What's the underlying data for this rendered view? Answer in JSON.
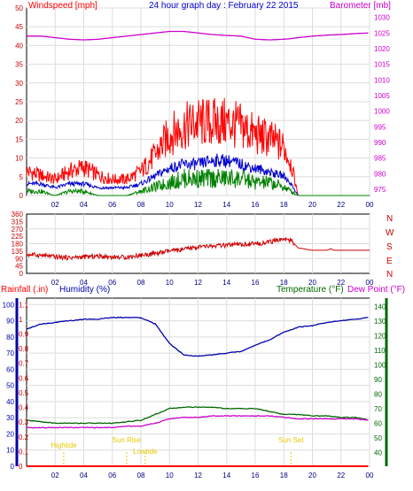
{
  "header": {
    "left": "Windspeed [mph]",
    "center": "24 hour graph day : February 22 2015",
    "right": "Barometer [mb]"
  },
  "middle": {
    "direction_labels": [
      "N",
      "W",
      "S",
      "E",
      "N"
    ]
  },
  "bottom_header": {
    "rainfall": "Rainfall (.in)",
    "humidity": "Humidity (%)",
    "temperature": "Temperature (°F)",
    "dewpoint": "Dew Point (°F)"
  },
  "colors": {
    "windspeed": "#ff0000",
    "avg": "#0000cc",
    "gust": "#008000",
    "barometer": "#cc00cc",
    "humidity": "#0000aa",
    "temperature": "#006600",
    "dewpoint": "#cc00cc",
    "rain": "#ff0000",
    "tide": "#e6c800",
    "grid": "#dddddd",
    "background": "#ffffff"
  },
  "chart_data": [
    {
      "type": "line",
      "title": "24 hour graph day : February 22 2015",
      "xlabel": "",
      "ylabel_left": "Windspeed [mph]",
      "ylabel_right": "Barometer [mb]",
      "x_ticks": [
        "02",
        "04",
        "06",
        "08",
        "10",
        "12",
        "14",
        "16",
        "18",
        "20",
        "22",
        "00"
      ],
      "y_left_ticks": [
        0,
        5,
        10,
        15,
        20,
        25,
        30,
        35,
        40,
        45,
        50
      ],
      "y_right_ticks": [
        975,
        980,
        985,
        990,
        995,
        1000,
        1005,
        1010,
        1015,
        1020,
        1025,
        1030
      ],
      "ylim_left": [
        0,
        50
      ],
      "ylim_right": [
        973,
        1033
      ],
      "x_hours": [
        0,
        1,
        2,
        3,
        4,
        5,
        6,
        7,
        8,
        9,
        10,
        11,
        12,
        13,
        14,
        15,
        16,
        17,
        18,
        18.5,
        19,
        20,
        21,
        22,
        23,
        24
      ],
      "series": [
        {
          "name": "Windspeed [mph]",
          "axis": "left",
          "values": [
            6,
            5,
            4,
            6,
            7,
            5,
            4,
            4,
            6,
            10,
            15,
            17,
            18,
            18,
            18,
            17,
            15,
            14,
            12,
            8,
            0,
            0,
            0,
            0,
            0,
            0
          ]
        },
        {
          "name": "",
          "axis": "left",
          "values": [
            3,
            3,
            2,
            3,
            3,
            2,
            2,
            2,
            3,
            5,
            7,
            8,
            8,
            9,
            9,
            8,
            7,
            6,
            5,
            3,
            0,
            0,
            0,
            0,
            0,
            0
          ]
        },
        {
          "name": "",
          "axis": "left",
          "values": [
            1,
            1,
            0,
            1,
            1,
            0,
            0,
            0,
            1,
            2,
            3,
            4,
            4,
            4,
            4,
            4,
            3,
            3,
            2,
            1,
            0,
            0,
            0,
            0,
            0,
            0
          ]
        },
        {
          "name": "Barometer [mb]",
          "axis": "right",
          "values": [
            1024,
            1024,
            1023.5,
            1023,
            1022.8,
            1023,
            1023.5,
            1024,
            1024.5,
            1025,
            1025.5,
            1025.5,
            1025,
            1024.5,
            1024.2,
            1024,
            1023,
            1022.8,
            1023,
            1023.2,
            1023.5,
            1024,
            1024.3,
            1024.5,
            1024.8,
            1025
          ]
        }
      ]
    },
    {
      "type": "line",
      "ylabel_right": "",
      "x_ticks": [
        "02",
        "04",
        "06",
        "08",
        "10",
        "12",
        "14",
        "16",
        "18",
        "20",
        "22",
        "00"
      ],
      "y_ticks": [
        0,
        45,
        90,
        135,
        180,
        225,
        270,
        315,
        360
      ],
      "ylim": [
        0,
        360
      ],
      "x_hours": [
        0,
        1,
        2,
        3,
        4,
        5,
        6,
        7,
        8,
        9,
        10,
        11,
        12,
        13,
        14,
        15,
        16,
        17,
        17.5,
        18,
        18.5,
        19,
        20,
        21,
        21.3,
        21.5,
        22,
        23,
        24
      ],
      "series": [
        {
          "name": "Wind direction",
          "values": [
            115,
            110,
            100,
            95,
            100,
            105,
            100,
            98,
            110,
            120,
            135,
            145,
            160,
            165,
            170,
            175,
            180,
            190,
            200,
            210,
            200,
            155,
            140,
            140,
            150,
            140,
            140,
            140,
            140
          ]
        }
      ]
    },
    {
      "type": "line",
      "ylabel_left": "Humidity (%)",
      "ylabel_rain": "Rainfall (.in)",
      "ylabel_right": "Temperature (°F)",
      "ylabel_right2": "Dew Point (°F)",
      "x_ticks": [
        "02",
        "04",
        "06",
        "08",
        "10",
        "12",
        "14",
        "16",
        "18",
        "20",
        "22",
        "00"
      ],
      "humidity_ticks": [
        0,
        10,
        20,
        30,
        40,
        50,
        60,
        70,
        80,
        90,
        100
      ],
      "rain_ticks": [
        0,
        0.1,
        0.2,
        0.3,
        0.4,
        0.5,
        0.6,
        0.7,
        0.8,
        0.9,
        1,
        1.1
      ],
      "temp_ticks": [
        40,
        50,
        60,
        70,
        80,
        90,
        100,
        110,
        120,
        130,
        140
      ],
      "humidity_ylim": [
        0,
        104
      ],
      "temp_ylim": [
        30.5,
        145.7
      ],
      "x_hours": [
        0,
        1,
        2,
        3,
        4,
        5,
        6,
        7,
        8,
        9,
        10,
        11,
        12,
        13,
        14,
        15,
        16,
        17,
        18,
        19,
        20,
        21,
        22,
        23,
        24
      ],
      "series": [
        {
          "name": "Humidity (%)",
          "axis": "humidity",
          "values": [
            85,
            88,
            89,
            90,
            91,
            91,
            92,
            92,
            92,
            88,
            76,
            69,
            68,
            69,
            70,
            71,
            75,
            78,
            83,
            86,
            87,
            89,
            90,
            91,
            92
          ]
        },
        {
          "name": "Temperature (°F)",
          "axis": "temp",
          "values": [
            62,
            61,
            60,
            60,
            60,
            60,
            60,
            61,
            62,
            66,
            70,
            71,
            71,
            71,
            70,
            70,
            70,
            68,
            66,
            66,
            65,
            65,
            64,
            64,
            62
          ]
        },
        {
          "name": "Dew Point (°F)",
          "axis": "temp",
          "values": [
            57,
            57,
            57,
            57,
            57,
            57,
            57,
            58,
            58,
            60,
            63,
            64,
            64,
            65,
            65,
            65,
            65,
            65,
            64,
            63,
            63,
            63,
            63,
            63,
            62
          ]
        },
        {
          "name": "Rainfall (.in)",
          "axis": "rain",
          "values": [
            0,
            0,
            0,
            0,
            0,
            0,
            0,
            0,
            0,
            0,
            0,
            0,
            0,
            0,
            0,
            0,
            0,
            0,
            0,
            0,
            0,
            0,
            0,
            0,
            0
          ]
        }
      ],
      "tide_markers": [
        {
          "label": "Hightide",
          "hour": 2.6
        },
        {
          "label": "Sun Rise",
          "hour": 7.0
        },
        {
          "label": "Lowtide",
          "hour": 8.3
        },
        {
          "label": "Sun Set",
          "hour": 18.5
        }
      ]
    }
  ]
}
